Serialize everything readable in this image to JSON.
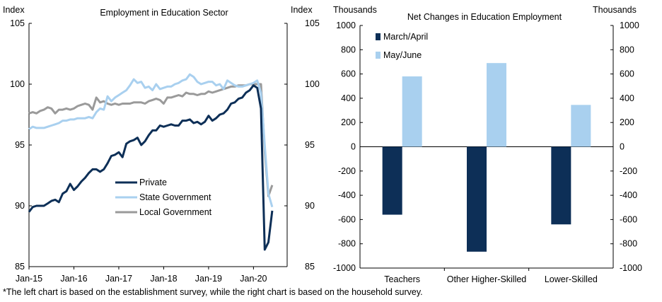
{
  "footnote": "*The left chart is based on the establishment survey, while the right chart is based on the household survey.",
  "chart_data": [
    {
      "type": "line",
      "title": "Employment in Education Sector",
      "left_axis_label": "Index",
      "right_axis_label": "Index",
      "ylim": [
        85,
        105
      ],
      "y_ticks": [
        85,
        90,
        95,
        100,
        105
      ],
      "xlim": [
        2015.0,
        2020.75
      ],
      "x_ticks": [
        {
          "label": "Jan-15",
          "x": 2015.0
        },
        {
          "label": "Jan-16",
          "x": 2016.0
        },
        {
          "label": "Jan-17",
          "x": 2017.0
        },
        {
          "label": "Jan-18",
          "x": 2018.0
        },
        {
          "label": "Jan-19",
          "x": 2019.0
        },
        {
          "label": "Jan-20",
          "x": 2020.0
        }
      ],
      "legend_position": "bottom-center",
      "series": [
        {
          "name": "Private",
          "color": "#0d2f57",
          "points": [
            [
              2015.0,
              89.5
            ],
            [
              2015.083,
              89.9
            ],
            [
              2015.167,
              90.0
            ],
            [
              2015.25,
              90.0
            ],
            [
              2015.333,
              90.0
            ],
            [
              2015.417,
              90.2
            ],
            [
              2015.5,
              90.4
            ],
            [
              2015.583,
              90.5
            ],
            [
              2015.667,
              90.3
            ],
            [
              2015.75,
              91.0
            ],
            [
              2015.833,
              91.2
            ],
            [
              2015.917,
              91.8
            ],
            [
              2016.0,
              91.3
            ],
            [
              2016.083,
              91.6
            ],
            [
              2016.167,
              92.0
            ],
            [
              2016.25,
              92.3
            ],
            [
              2016.333,
              92.7
            ],
            [
              2016.417,
              93.0
            ],
            [
              2016.5,
              93.0
            ],
            [
              2016.583,
              92.8
            ],
            [
              2016.667,
              93.0
            ],
            [
              2016.75,
              93.5
            ],
            [
              2016.833,
              94.1
            ],
            [
              2016.917,
              94.2
            ],
            [
              2017.0,
              94.4
            ],
            [
              2017.083,
              94.0
            ],
            [
              2017.167,
              95.1
            ],
            [
              2017.25,
              95.3
            ],
            [
              2017.333,
              95.4
            ],
            [
              2017.417,
              95.6
            ],
            [
              2017.5,
              95.0
            ],
            [
              2017.583,
              95.3
            ],
            [
              2017.667,
              95.8
            ],
            [
              2017.75,
              96.2
            ],
            [
              2017.833,
              96.2
            ],
            [
              2017.917,
              96.6
            ],
            [
              2018.0,
              96.5
            ],
            [
              2018.083,
              96.6
            ],
            [
              2018.167,
              96.7
            ],
            [
              2018.25,
              96.6
            ],
            [
              2018.333,
              96.6
            ],
            [
              2018.417,
              97.0
            ],
            [
              2018.5,
              97.0
            ],
            [
              2018.583,
              97.1
            ],
            [
              2018.667,
              96.8
            ],
            [
              2018.75,
              96.9
            ],
            [
              2018.833,
              96.7
            ],
            [
              2018.917,
              96.9
            ],
            [
              2019.0,
              97.4
            ],
            [
              2019.083,
              97.0
            ],
            [
              2019.167,
              97.2
            ],
            [
              2019.25,
              97.5
            ],
            [
              2019.333,
              97.6
            ],
            [
              2019.417,
              97.9
            ],
            [
              2019.5,
              98.4
            ],
            [
              2019.583,
              98.5
            ],
            [
              2019.667,
              98.8
            ],
            [
              2019.75,
              98.9
            ],
            [
              2019.833,
              99.3
            ],
            [
              2019.917,
              99.5
            ],
            [
              2020.0,
              99.9
            ],
            [
              2020.083,
              99.7
            ],
            [
              2020.167,
              98.0
            ],
            [
              2020.25,
              86.4
            ],
            [
              2020.333,
              87.0
            ],
            [
              2020.417,
              89.6
            ]
          ]
        },
        {
          "name": "State Government",
          "color": "#a9d0ef",
          "points": [
            [
              2015.0,
              96.3
            ],
            [
              2015.083,
              96.5
            ],
            [
              2015.167,
              96.4
            ],
            [
              2015.25,
              96.4
            ],
            [
              2015.333,
              96.4
            ],
            [
              2015.417,
              96.5
            ],
            [
              2015.5,
              96.6
            ],
            [
              2015.583,
              96.7
            ],
            [
              2015.667,
              96.8
            ],
            [
              2015.75,
              97.0
            ],
            [
              2015.833,
              97.0
            ],
            [
              2015.917,
              97.1
            ],
            [
              2016.0,
              97.1
            ],
            [
              2016.083,
              97.2
            ],
            [
              2016.167,
              97.2
            ],
            [
              2016.25,
              97.2
            ],
            [
              2016.333,
              97.3
            ],
            [
              2016.417,
              97.2
            ],
            [
              2016.5,
              97.7
            ],
            [
              2016.583,
              98.0
            ],
            [
              2016.667,
              97.9
            ],
            [
              2016.75,
              99.0
            ],
            [
              2016.833,
              98.6
            ],
            [
              2016.917,
              98.9
            ],
            [
              2017.0,
              99.1
            ],
            [
              2017.083,
              99.3
            ],
            [
              2017.167,
              99.5
            ],
            [
              2017.25,
              99.9
            ],
            [
              2017.333,
              100.4
            ],
            [
              2017.417,
              100.1
            ],
            [
              2017.5,
              100.2
            ],
            [
              2017.583,
              99.7
            ],
            [
              2017.667,
              99.8
            ],
            [
              2017.75,
              99.5
            ],
            [
              2017.833,
              100.0
            ],
            [
              2017.917,
              99.6
            ],
            [
              2018.0,
              99.7
            ],
            [
              2018.083,
              99.8
            ],
            [
              2018.167,
              99.8
            ],
            [
              2018.25,
              100.0
            ],
            [
              2018.333,
              100.1
            ],
            [
              2018.417,
              100.3
            ],
            [
              2018.5,
              100.4
            ],
            [
              2018.583,
              100.8
            ],
            [
              2018.667,
              100.6
            ],
            [
              2018.75,
              100.2
            ],
            [
              2018.833,
              100.0
            ],
            [
              2018.917,
              100.1
            ],
            [
              2019.0,
              100.2
            ],
            [
              2019.083,
              100.2
            ],
            [
              2019.167,
              99.9
            ],
            [
              2019.25,
              100.0
            ],
            [
              2019.333,
              99.6
            ],
            [
              2019.417,
              100.3
            ],
            [
              2019.5,
              100.1
            ],
            [
              2019.583,
              99.9
            ],
            [
              2019.667,
              99.8
            ],
            [
              2019.75,
              99.8
            ],
            [
              2019.833,
              99.9
            ],
            [
              2019.917,
              100.0
            ],
            [
              2020.0,
              100.1
            ],
            [
              2020.083,
              100.3
            ],
            [
              2020.167,
              99.3
            ],
            [
              2020.25,
              95.0
            ],
            [
              2020.333,
              91.0
            ],
            [
              2020.417,
              89.9
            ]
          ]
        },
        {
          "name": "Local Government",
          "color": "#9a9a9a",
          "points": [
            [
              2015.0,
              97.6
            ],
            [
              2015.083,
              97.7
            ],
            [
              2015.167,
              97.6
            ],
            [
              2015.25,
              97.8
            ],
            [
              2015.333,
              97.9
            ],
            [
              2015.417,
              98.1
            ],
            [
              2015.5,
              98.0
            ],
            [
              2015.583,
              97.6
            ],
            [
              2015.667,
              97.9
            ],
            [
              2015.75,
              97.9
            ],
            [
              2015.833,
              98.0
            ],
            [
              2015.917,
              97.9
            ],
            [
              2016.0,
              98.0
            ],
            [
              2016.083,
              98.2
            ],
            [
              2016.167,
              98.3
            ],
            [
              2016.25,
              98.4
            ],
            [
              2016.333,
              98.3
            ],
            [
              2016.417,
              97.9
            ],
            [
              2016.5,
              98.9
            ],
            [
              2016.583,
              98.5
            ],
            [
              2016.667,
              98.6
            ],
            [
              2016.75,
              98.4
            ],
            [
              2016.833,
              98.3
            ],
            [
              2016.917,
              98.4
            ],
            [
              2017.0,
              98.3
            ],
            [
              2017.083,
              98.4
            ],
            [
              2017.167,
              98.4
            ],
            [
              2017.25,
              98.4
            ],
            [
              2017.333,
              98.5
            ],
            [
              2017.417,
              98.5
            ],
            [
              2017.5,
              98.5
            ],
            [
              2017.583,
              98.4
            ],
            [
              2017.667,
              98.6
            ],
            [
              2017.75,
              98.7
            ],
            [
              2017.833,
              98.8
            ],
            [
              2017.917,
              98.7
            ],
            [
              2018.0,
              98.4
            ],
            [
              2018.083,
              98.9
            ],
            [
              2018.167,
              98.9
            ],
            [
              2018.25,
              99.0
            ],
            [
              2018.333,
              99.1
            ],
            [
              2018.417,
              99.0
            ],
            [
              2018.5,
              99.3
            ],
            [
              2018.583,
              99.2
            ],
            [
              2018.667,
              99.2
            ],
            [
              2018.75,
              99.1
            ],
            [
              2018.833,
              99.2
            ],
            [
              2018.917,
              99.2
            ],
            [
              2019.0,
              99.4
            ],
            [
              2019.083,
              99.3
            ],
            [
              2019.167,
              99.4
            ],
            [
              2019.25,
              99.5
            ],
            [
              2019.333,
              99.6
            ],
            [
              2019.417,
              99.7
            ],
            [
              2019.5,
              99.8
            ],
            [
              2019.583,
              99.8
            ],
            [
              2019.667,
              99.9
            ],
            [
              2019.75,
              99.9
            ],
            [
              2019.833,
              99.9
            ],
            [
              2019.917,
              100.0
            ],
            [
              2020.0,
              100.0
            ],
            [
              2020.083,
              100.0
            ],
            [
              2020.167,
              100.0
            ],
            [
              2020.25,
              94.5
            ],
            [
              2020.333,
              90.8
            ],
            [
              2020.417,
              91.7
            ]
          ]
        }
      ]
    },
    {
      "type": "bar",
      "title": "Net Changes  in Education Employment",
      "left_axis_label": "Thousands",
      "right_axis_label": "Thousands",
      "ylim": [
        -1000,
        1000
      ],
      "y_ticks": [
        -1000,
        -800,
        -600,
        -400,
        -200,
        0,
        200,
        400,
        600,
        800,
        1000
      ],
      "categories": [
        "Teachers",
        "Other Higher-Skilled",
        "Lower-Skilled"
      ],
      "legend_position": "top-left",
      "series": [
        {
          "name": "March/April",
          "color": "#0d2f57",
          "values": [
            -560,
            -865,
            -640
          ]
        },
        {
          "name": "May/June",
          "color": "#a9d0ef",
          "values": [
            580,
            690,
            345
          ]
        }
      ]
    }
  ]
}
